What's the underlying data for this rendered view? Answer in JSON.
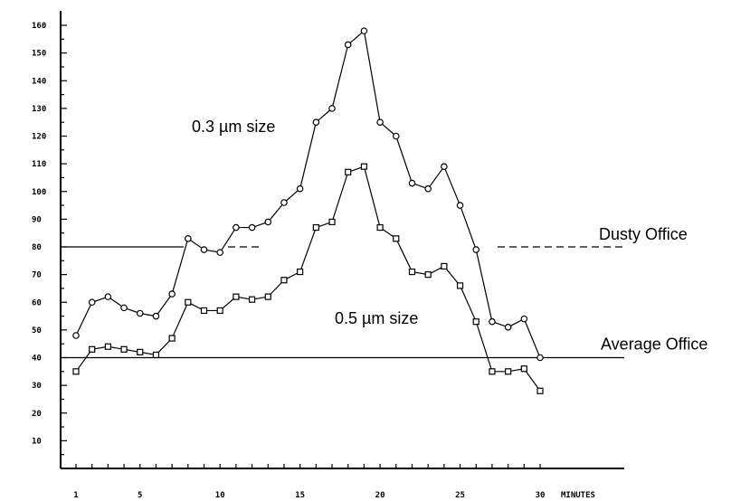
{
  "chart_data": {
    "type": "line",
    "title": "",
    "xlabel": "MINUTES",
    "ylabel": "",
    "xlim": [
      0,
      30.5
    ],
    "ylim": [
      0,
      163
    ],
    "x_ticks": [
      1,
      5,
      10,
      15,
      20,
      25,
      30
    ],
    "y_ticks": [
      10,
      20,
      30,
      40,
      50,
      60,
      70,
      80,
      90,
      100,
      110,
      120,
      130,
      140,
      150,
      160
    ],
    "y_tick_labels": [
      "10",
      "20",
      "30",
      "40",
      "50",
      "60",
      "70",
      "80",
      "90",
      "100",
      "110",
      "120",
      "130",
      "140",
      "150",
      "160"
    ],
    "series": [
      {
        "name": "0.3 µm size",
        "marker": "diamond",
        "x": [
          1,
          2,
          3,
          4,
          5,
          6,
          7,
          8,
          9,
          10,
          11,
          12,
          13,
          14,
          15,
          16,
          17,
          18,
          19,
          20,
          21,
          22,
          23,
          24,
          25,
          26,
          27,
          28,
          29,
          30
        ],
        "y": [
          48,
          60,
          62,
          58,
          56,
          55,
          63,
          83,
          79,
          78,
          87,
          87,
          89,
          96,
          101,
          125,
          130,
          153,
          158,
          125,
          120,
          103,
          101,
          109,
          95,
          79,
          53,
          51,
          54,
          40
        ]
      },
      {
        "name": "0.5 µm size",
        "marker": "square",
        "x": [
          1,
          2,
          3,
          4,
          5,
          6,
          7,
          8,
          9,
          10,
          11,
          12,
          13,
          14,
          15,
          16,
          17,
          18,
          19,
          20,
          21,
          22,
          23,
          24,
          25,
          26,
          27,
          28,
          29,
          30
        ],
        "y": [
          35,
          43,
          44,
          43,
          42,
          41,
          47,
          60,
          57,
          57,
          62,
          61,
          62,
          68,
          71,
          87,
          89,
          107,
          109,
          87,
          83,
          71,
          70,
          73,
          66,
          53,
          35,
          35,
          36,
          28
        ]
      }
    ],
    "reference_lines": [
      {
        "label": "Dusty Office",
        "y": 80
      },
      {
        "label": "Average Office",
        "y": 40
      }
    ],
    "annotations": [
      {
        "text": "0.3 µm size",
        "x": 16.3,
        "y": 124
      },
      {
        "text": "0.5 µm size",
        "x": 16.3,
        "y": 60
      }
    ]
  }
}
